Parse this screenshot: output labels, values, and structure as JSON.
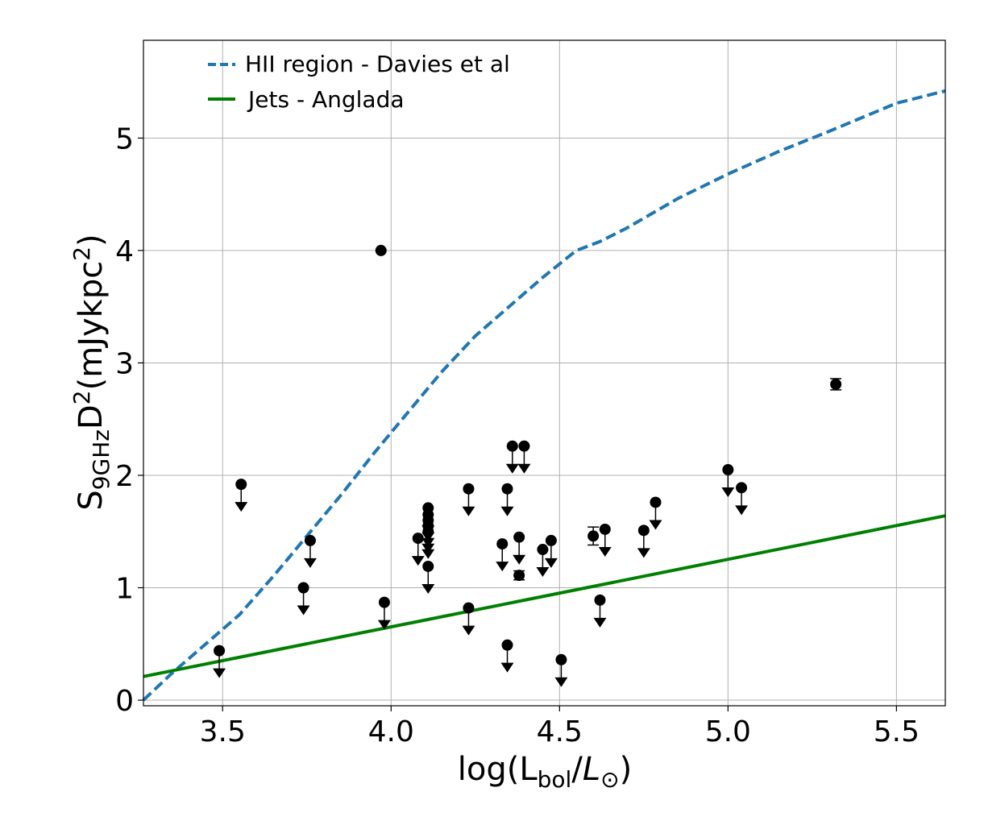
{
  "chart_data": {
    "type": "scatter",
    "title": "",
    "xlabel": {
      "pre": "log(L",
      "sub": "bol",
      "mid": "/",
      "italic": "L",
      "italic_sub": "⊙",
      "post": ")"
    },
    "ylabel": {
      "pre": "S",
      "sub": "9GHz",
      "mid": "D",
      "sup": "2",
      "post": "(mJykpc",
      "post_sup": "2",
      "end": ")"
    },
    "xlim": [
      3.265,
      5.645
    ],
    "ylim": [
      -0.05,
      5.87
    ],
    "xticks": [
      3.5,
      4.0,
      4.5,
      5.0,
      5.5
    ],
    "xtick_labels": [
      "3.5",
      "4.0",
      "4.5",
      "5.0",
      "5.5"
    ],
    "yticks": [
      0,
      1,
      2,
      3,
      4,
      5
    ],
    "ytick_labels": [
      "0",
      "1",
      "2",
      "3",
      "4",
      "5"
    ],
    "grid": true,
    "legend_position": "top-left",
    "series": [
      {
        "name": "HII region - Davies et al",
        "kind": "line",
        "style": "dashed",
        "color": "#1f77b4",
        "x": [
          3.265,
          3.35,
          3.45,
          3.55,
          3.65,
          3.75,
          3.85,
          3.95,
          4.05,
          4.15,
          4.25,
          4.35,
          4.45,
          4.55,
          4.62,
          4.7,
          4.85,
          5.0,
          5.15,
          5.3,
          5.5,
          5.645
        ],
        "y": [
          0.0,
          0.24,
          0.5,
          0.76,
          1.1,
          1.46,
          1.82,
          2.2,
          2.56,
          2.92,
          3.24,
          3.5,
          3.76,
          4.0,
          4.08,
          4.2,
          4.46,
          4.68,
          4.88,
          5.06,
          5.31,
          5.42
        ]
      },
      {
        "name": "Jets - Anglada",
        "kind": "line",
        "style": "solid",
        "color": "#008000",
        "x": [
          3.265,
          5.645
        ],
        "y": [
          0.21,
          1.64
        ]
      },
      {
        "name": "detections",
        "kind": "points",
        "color": "#000000",
        "points": [
          {
            "x": 3.97,
            "y": 4.0
          },
          {
            "x": 4.38,
            "y": 1.11,
            "yerr": 0.04
          },
          {
            "x": 4.6,
            "y": 1.46,
            "yerr": 0.08
          },
          {
            "x": 5.32,
            "y": 2.81,
            "yerr": 0.05
          }
        ]
      },
      {
        "name": "upper limits",
        "kind": "upper_limits",
        "color": "#000000",
        "points": [
          {
            "x": 3.49,
            "y": 0.44
          },
          {
            "x": 3.555,
            "y": 1.92
          },
          {
            "x": 3.74,
            "y": 1.0
          },
          {
            "x": 3.76,
            "y": 1.42
          },
          {
            "x": 3.98,
            "y": 0.87
          },
          {
            "x": 4.08,
            "y": 1.44
          },
          {
            "x": 4.11,
            "y": 1.71
          },
          {
            "x": 4.11,
            "y": 1.65
          },
          {
            "x": 4.11,
            "y": 1.6
          },
          {
            "x": 4.11,
            "y": 1.55
          },
          {
            "x": 4.11,
            "y": 1.5
          },
          {
            "x": 4.11,
            "y": 1.19
          },
          {
            "x": 4.23,
            "y": 1.88
          },
          {
            "x": 4.23,
            "y": 0.82
          },
          {
            "x": 4.33,
            "y": 1.39
          },
          {
            "x": 4.345,
            "y": 1.88
          },
          {
            "x": 4.345,
            "y": 0.49
          },
          {
            "x": 4.36,
            "y": 2.26
          },
          {
            "x": 4.38,
            "y": 1.45
          },
          {
            "x": 4.395,
            "y": 2.26
          },
          {
            "x": 4.45,
            "y": 1.34
          },
          {
            "x": 4.475,
            "y": 1.42
          },
          {
            "x": 4.505,
            "y": 0.36
          },
          {
            "x": 4.62,
            "y": 0.89
          },
          {
            "x": 4.635,
            "y": 1.52
          },
          {
            "x": 4.75,
            "y": 1.51
          },
          {
            "x": 4.785,
            "y": 1.76
          },
          {
            "x": 5.0,
            "y": 2.05
          },
          {
            "x": 5.04,
            "y": 1.89
          }
        ]
      }
    ]
  }
}
